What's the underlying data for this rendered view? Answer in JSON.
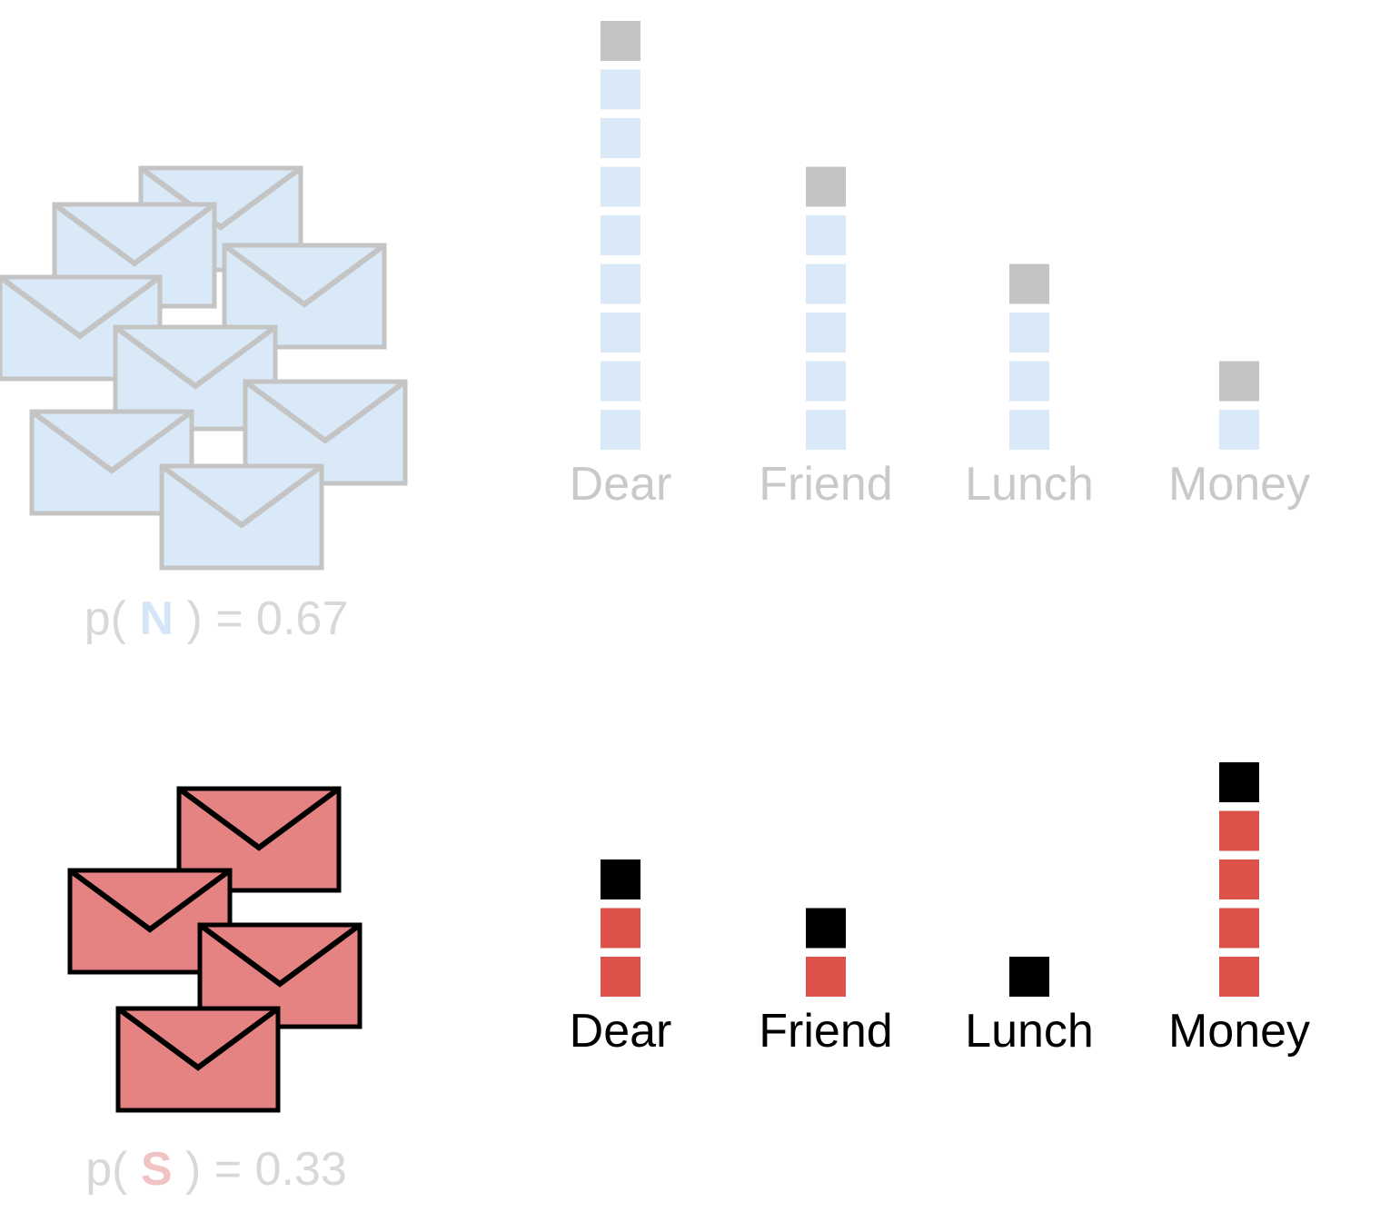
{
  "colors": {
    "normal_fill": "#d9e9f8",
    "normal_border": "#c4c4c4",
    "normal_extra": "#c4c4c4",
    "normal_text": "#c9c9c9",
    "normal_letter": "#d4e6f7",
    "spam_fill": "#e58383",
    "spam_block": "#dc524a",
    "spam_border": "#000000",
    "spam_extra": "#000000",
    "spam_text": "#000000",
    "prior_text": "#d8d8d8",
    "spam_letter": "#f0c4c4"
  },
  "icons": {
    "envelope": "envelope-icon"
  },
  "chart_data": [
    {
      "type": "bar",
      "group": "normal",
      "categories": [
        "Dear",
        "Friend",
        "Lunch",
        "Money"
      ],
      "values": [
        8,
        5,
        3,
        1
      ],
      "extra_count": [
        1,
        1,
        1,
        1
      ],
      "prior": {
        "prefix": "p( ",
        "letter": "N",
        "suffix": " ) = 0.67"
      },
      "envelope_count": 8
    },
    {
      "type": "bar",
      "group": "spam",
      "categories": [
        "Dear",
        "Friend",
        "Lunch",
        "Money"
      ],
      "values": [
        2,
        1,
        0,
        4
      ],
      "extra_count": [
        1,
        1,
        1,
        1
      ],
      "prior": {
        "prefix": "p( ",
        "letter": "S",
        "suffix": " ) = 0.33"
      },
      "envelope_count": 4
    }
  ]
}
